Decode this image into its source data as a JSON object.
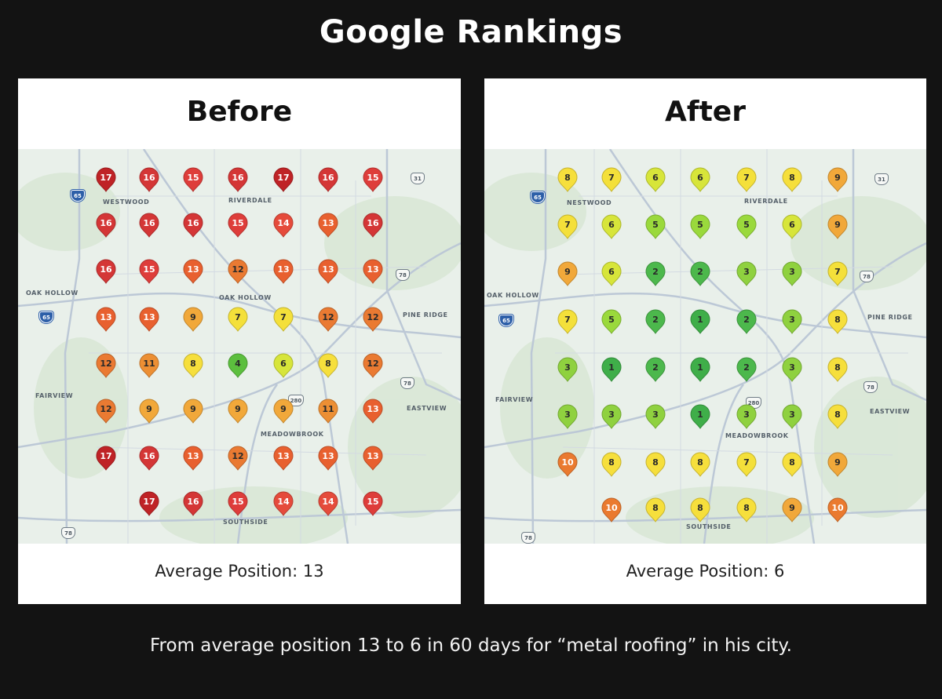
{
  "title": "Google Rankings",
  "caption": "From average position 13 to 6 in 60 days for “metal roofing” in his city.",
  "color_scale": {
    "1": "#3fae49",
    "2": "#4cb84c",
    "3": "#8fd13f",
    "4": "#5cbf3e",
    "5": "#9ad93c",
    "6": "#d7e53a",
    "7": "#f4e03a",
    "8": "#f6df3c",
    "9": "#f1a83a",
    "10": "#ea7a2f",
    "11": "#ec8f34",
    "12": "#ea7a32",
    "13": "#e8602f",
    "14": "#e54b3b",
    "15": "#de3d3a",
    "16": "#d43636",
    "17": "#bf2326"
  },
  "panels": {
    "before": {
      "title": "Before",
      "average_label": "Average Position: 13",
      "map_labels": {
        "westwood": "WESTWOOD",
        "riverdale": "RIVERDALE",
        "oak_hollow_west": "OAK HOLLOW",
        "oak_hollow": "OAK HOLLOW",
        "pine_ridge": "PINE RIDGE",
        "fairview": "FAIRVIEW",
        "eastview": "EASTVIEW",
        "meadowbrook": "MEADOWBROOK",
        "southside": "SOUTHSIDE"
      },
      "shields": {
        "i65_top": "65",
        "i65_mid": "65",
        "us31": "31",
        "us78_a": "78",
        "us78_b": "78",
        "us78_c": "78",
        "r280": "280"
      },
      "grid": [
        [
          17,
          16,
          15,
          16,
          17,
          16,
          15
        ],
        [
          16,
          16,
          16,
          15,
          14,
          13,
          16
        ],
        [
          16,
          15,
          13,
          12,
          13,
          13,
          13
        ],
        [
          13,
          13,
          9,
          7,
          7,
          12,
          12
        ],
        [
          12,
          11,
          8,
          4,
          6,
          8,
          12
        ],
        [
          12,
          9,
          9,
          9,
          9,
          11,
          13
        ],
        [
          17,
          16,
          13,
          12,
          13,
          13,
          13
        ],
        [
          null,
          17,
          16,
          15,
          14,
          14,
          15
        ]
      ]
    },
    "after": {
      "title": "After",
      "average_label": "Average Position: 6",
      "map_labels": {
        "westwood": "NESTWOOD",
        "riverdale": "RIVERDALE",
        "oak_hollow_west": "OAK HOLLOW",
        "oak_hollow": "",
        "pine_ridge": "PINE RIDGE",
        "fairview": "FAIRVIEW",
        "eastview": "EASTVIEW",
        "meadowbrook": "MEADOWBROOK",
        "southside": "SOUTHSIDE"
      },
      "shields": {
        "i65_top": "65",
        "i65_mid": "65",
        "us31": "31",
        "us78_a": "78",
        "us78_b": "78",
        "us78_c": "78",
        "r280": "280"
      },
      "grid": [
        [
          8,
          7,
          6,
          6,
          7,
          8,
          9
        ],
        [
          7,
          6,
          5,
          5,
          5,
          6,
          9
        ],
        [
          9,
          6,
          2,
          2,
          3,
          3,
          7
        ],
        [
          7,
          5,
          2,
          1,
          2,
          3,
          8
        ],
        [
          3,
          1,
          2,
          1,
          2,
          3,
          8
        ],
        [
          3,
          3,
          3,
          1,
          3,
          3,
          8
        ],
        [
          10,
          8,
          8,
          8,
          7,
          8,
          9
        ],
        [
          null,
          10,
          8,
          8,
          8,
          9,
          10
        ]
      ]
    }
  }
}
